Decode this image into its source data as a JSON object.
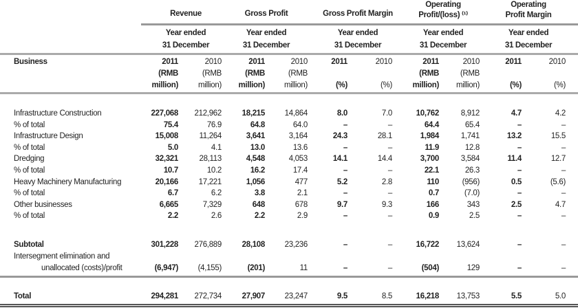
{
  "groups": [
    {
      "title": [
        "Revenue"
      ],
      "period": [
        "Year ended",
        "31 December"
      ]
    },
    {
      "title": [
        "Gross Profit"
      ],
      "period": [
        "Year ended",
        "31 December"
      ]
    },
    {
      "title": [
        "Gross Profit Margin"
      ],
      "period": [
        "Year ended",
        "31 December"
      ]
    },
    {
      "title": [
        "Operating",
        "Profit/(loss) ⁽¹⁾"
      ],
      "period": [
        "Year ended",
        "31 December"
      ]
    },
    {
      "title": [
        "Operating",
        "Profit Margin"
      ],
      "period": [
        "Year ended",
        "31 December"
      ]
    }
  ],
  "business_label": "Business",
  "subheaders": [
    [
      "2011",
      "(RMB",
      "million)"
    ],
    [
      "2010",
      "(RMB",
      "million)"
    ],
    [
      "2011",
      "(RMB",
      "million)"
    ],
    [
      "2010",
      "(RMB",
      "million)"
    ],
    [
      "2011",
      "",
      "(%)"
    ],
    [
      "2010",
      "",
      "(%)"
    ],
    [
      "2011",
      "(RMB",
      "million)"
    ],
    [
      "2010",
      "(RMB",
      "million)"
    ],
    [
      "2011",
      "",
      "(%)"
    ],
    [
      "2010",
      "",
      "(%)"
    ]
  ],
  "rows": [
    {
      "label": "Infrastructure Construction",
      "values": [
        "227,068",
        "212,962",
        "18,215",
        "14,864",
        "8.0",
        "7.0",
        "10,762",
        "8,912",
        "4.7",
        "4.2"
      ]
    },
    {
      "label": "% of total",
      "values": [
        "75.4",
        "76.9",
        "64.8",
        "64.0",
        "–",
        "–",
        "64.4",
        "65.4",
        "–",
        "–"
      ]
    },
    {
      "label": "Infrastructure Design",
      "values": [
        "15,008",
        "11,264",
        "3,641",
        "3,164",
        "24.3",
        "28.1",
        "1,984",
        "1,741",
        "13.2",
        "15.5"
      ]
    },
    {
      "label": "% of total",
      "values": [
        "5.0",
        "4.1",
        "13.0",
        "13.6",
        "–",
        "–",
        "11.9",
        "12.8",
        "–",
        "–"
      ]
    },
    {
      "label": "Dredging",
      "values": [
        "32,321",
        "28,113",
        "4,548",
        "4,053",
        "14.1",
        "14.4",
        "3,700",
        "3,584",
        "11.4",
        "12.7"
      ]
    },
    {
      "label": "% of total",
      "values": [
        "10.7",
        "10.2",
        "16.2",
        "17.4",
        "–",
        "–",
        "22.1",
        "26.3",
        "–",
        "–"
      ]
    },
    {
      "label": "Heavy Machinery Manufacturing",
      "values": [
        "20,166",
        "17,221",
        "1,056",
        "477",
        "5.2",
        "2.8",
        "110",
        "(956)",
        "0.5",
        "(5.6)"
      ]
    },
    {
      "label": "% of total",
      "values": [
        "6.7",
        "6.2",
        "3.8",
        "2.1",
        "–",
        "–",
        "0.7",
        "(7.0)",
        "–",
        "–"
      ]
    },
    {
      "label": "Other businesses",
      "values": [
        "6,665",
        "7,329",
        "648",
        "678",
        "9.7",
        "9.3",
        "166",
        "343",
        "2.5",
        "4.7"
      ]
    },
    {
      "label": "% of total",
      "values": [
        "2.2",
        "2.6",
        "2.2",
        "2.9",
        "–",
        "–",
        "0.9",
        "2.5",
        "–",
        "–"
      ]
    }
  ],
  "subtotal": {
    "label": "Subtotal",
    "values": [
      "301,228",
      "276,889",
      "28,108",
      "23,236",
      "–",
      "–",
      "16,722",
      "13,624",
      "–",
      "–"
    ]
  },
  "intersegment": {
    "label": [
      "Intersegment elimination and",
      "unallocated (costs)/profit"
    ],
    "values": [
      "(6,947)",
      "(4,155)",
      "(201)",
      "11",
      "–",
      "–",
      "(504)",
      "129",
      "–",
      "–"
    ]
  },
  "total": {
    "label": "Total",
    "values": [
      "294,281",
      "272,734",
      "27,907",
      "23,247",
      "9.5",
      "8.5",
      "16,218",
      "13,753",
      "5.5",
      "5.0"
    ]
  }
}
